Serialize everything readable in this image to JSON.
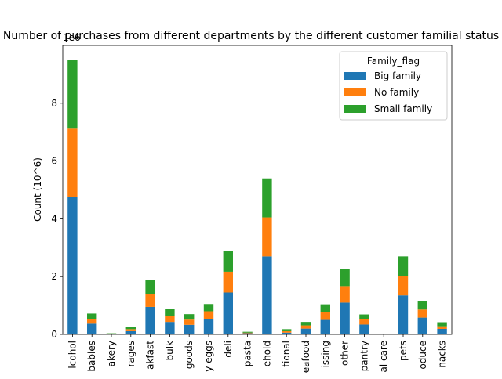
{
  "chart_data": {
    "type": "bar",
    "stacked": true,
    "title": "Number of purchases from different departments by the different customer familial status",
    "scale_label": "1e6",
    "xlabel": "",
    "ylabel": "Count (10^6)",
    "ylim": [
      0,
      10
    ],
    "yticks": [
      0,
      2,
      4,
      6,
      8
    ],
    "categories": [
      "alcohol",
      "babies",
      "bakery",
      "beverages",
      "breakfast",
      "bulk",
      "canned goods",
      "dairy eggs",
      "deli",
      "dry goods pasta",
      "household",
      "international",
      "meat seafood",
      "missing",
      "other",
      "pantry",
      "personal care",
      "pets",
      "produce",
      "snacks"
    ],
    "tick_labels": [
      "lcohol",
      "babies",
      "akery",
      "rages",
      "akfast",
      "bulk",
      "goods",
      "y eggs",
      "deli",
      "pasta",
      "ehold",
      "tional",
      "eafood",
      "issing",
      "other",
      "pantry",
      "al care",
      "pets",
      "oduce",
      "nacks"
    ],
    "legend": {
      "title": "Family_flag",
      "position": "upper right"
    },
    "series": [
      {
        "name": "Big family",
        "color": "#1f77b4",
        "values": [
          4.75,
          0.37,
          0.02,
          0.11,
          0.95,
          0.43,
          0.33,
          0.53,
          1.45,
          0.04,
          2.7,
          0.06,
          0.2,
          0.5,
          1.1,
          0.34,
          0.01,
          1.35,
          0.58,
          0.19
        ]
      },
      {
        "name": "No family",
        "color": "#ff7f0e",
        "values": [
          2.37,
          0.15,
          0.01,
          0.07,
          0.45,
          0.21,
          0.18,
          0.27,
          0.72,
          0.02,
          1.35,
          0.05,
          0.11,
          0.27,
          0.57,
          0.18,
          0.005,
          0.67,
          0.28,
          0.09
        ]
      },
      {
        "name": "Small family",
        "color": "#2ca02c",
        "values": [
          2.38,
          0.2,
          0.01,
          0.09,
          0.48,
          0.24,
          0.19,
          0.25,
          0.71,
          0.03,
          1.35,
          0.07,
          0.12,
          0.27,
          0.58,
          0.17,
          0.005,
          0.68,
          0.3,
          0.14
        ]
      }
    ]
  }
}
